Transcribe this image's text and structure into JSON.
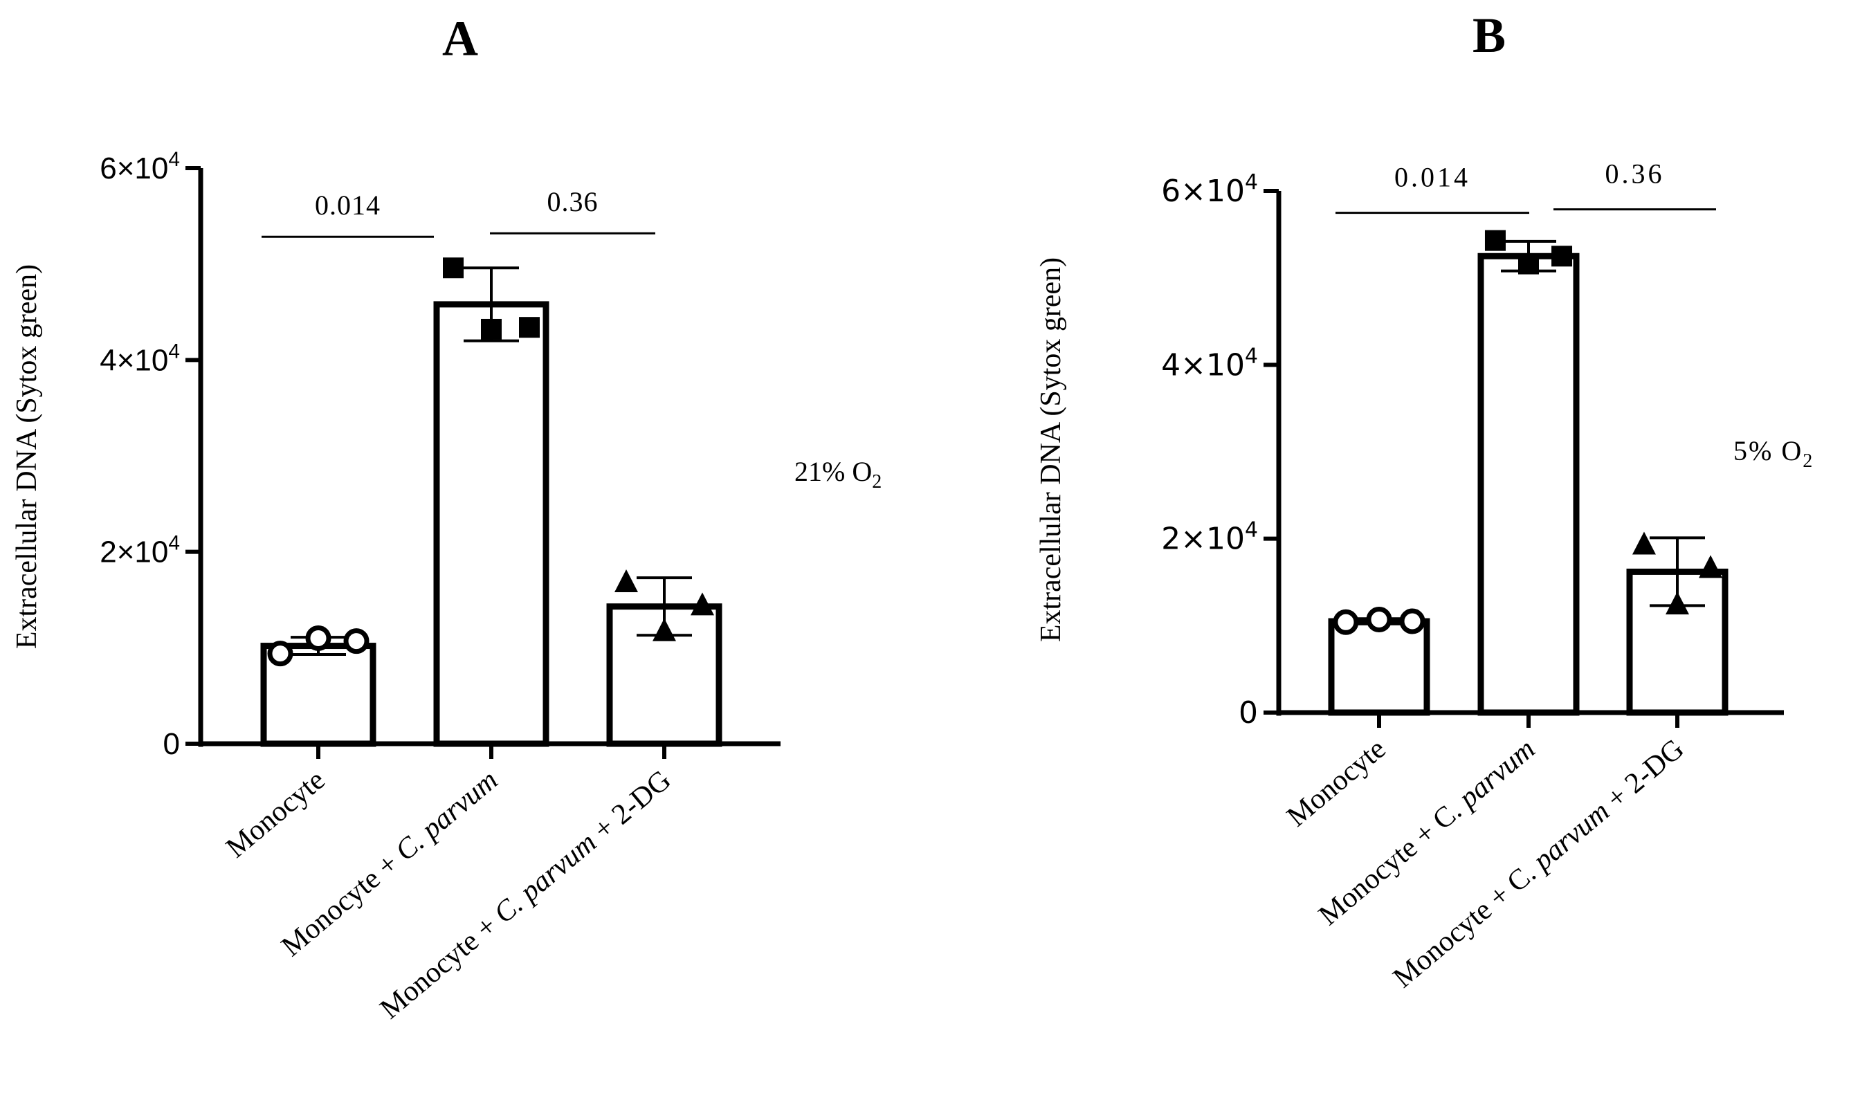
{
  "chart_data": [
    {
      "type": "bar",
      "panel_label": "A",
      "ylabel": "Extracellular DNA (Sytox green)",
      "ylim": [
        0,
        60000
      ],
      "yticks": [
        0,
        20000,
        40000,
        60000
      ],
      "ytick_labels": [
        "0",
        "2×10⁴",
        "4×10⁴",
        "6×10⁴"
      ],
      "categories": [
        "Monocyte",
        "Monocyte + C. parvum",
        "Monocyte + C. parvum + 2-DG"
      ],
      "category_parts": [
        [
          {
            "text": "Monocyte",
            "italic": false
          }
        ],
        [
          {
            "text": "Monocyte + ",
            "italic": false
          },
          {
            "text": "C. parvum",
            "italic": true
          }
        ],
        [
          {
            "text": "Monocyte + ",
            "italic": false
          },
          {
            "text": "C. parvum",
            "italic": true
          },
          {
            "text": " + 2-DG",
            "italic": false
          }
        ]
      ],
      "values": [
        10200,
        45800,
        14300
      ],
      "errors": [
        900,
        3800,
        3000
      ],
      "points": [
        [
          9400,
          11000,
          10700
        ],
        [
          49600,
          43200,
          43400
        ],
        [
          16800,
          11700,
          14400
        ]
      ],
      "markers": [
        "circle",
        "square",
        "triangle"
      ],
      "comparisons": [
        {
          "from": 0,
          "to": 1,
          "label": "0.014"
        },
        {
          "from": 1,
          "to": 2,
          "label": "0.36"
        }
      ],
      "condition": {
        "text": "21% O",
        "subscript": "2"
      }
    },
    {
      "type": "bar",
      "panel_label": "B",
      "ylabel": "Extracellular DNA (Sytox green)",
      "ylim": [
        0,
        60000
      ],
      "yticks": [
        0,
        20000,
        40000,
        60000
      ],
      "ytick_labels": [
        "0",
        "2×10⁴",
        "4×10⁴",
        "6×10⁴"
      ],
      "categories": [
        "Monocyte",
        "Monocyte + C. parvum",
        "Monocyte + C. parvum + 2-DG"
      ],
      "category_parts": [
        [
          {
            "text": "Monocyte",
            "italic": false
          }
        ],
        [
          {
            "text": "Monocyte + C. ",
            "italic": false
          },
          {
            "text": "parvum",
            "italic": true
          }
        ],
        [
          {
            "text": "Monocyte + C. ",
            "italic": false
          },
          {
            "text": "parvum",
            "italic": true
          },
          {
            "text": " + 2-DG",
            "italic": false
          }
        ]
      ],
      "values": [
        10500,
        52500,
        16200
      ],
      "errors": [
        300,
        1700,
        3900
      ],
      "points": [
        [
          10400,
          10700,
          10500
        ],
        [
          54300,
          51600,
          52500
        ],
        [
          19300,
          12400,
          16600
        ]
      ],
      "markers": [
        "circle",
        "square",
        "triangle"
      ],
      "comparisons": [
        {
          "from": 0,
          "to": 1,
          "label": "0.014"
        },
        {
          "from": 1,
          "to": 2,
          "label": "0.36"
        }
      ],
      "condition": {
        "text": "5% O",
        "subscript": "2"
      }
    }
  ]
}
